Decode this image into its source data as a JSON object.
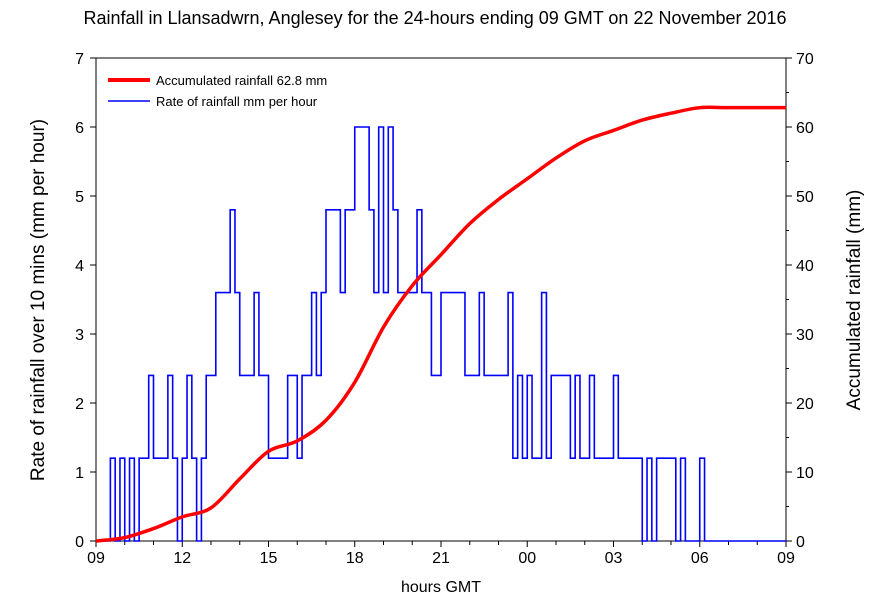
{
  "chart_data": {
    "type": "line",
    "title": "Rainfall in Llansadwrn, Anglesey for the 24-hours ending 09 GMT on 22 November 2016",
    "xlabel": "hours GMT",
    "ylabel_left": "Rate of rainfall over 10 mins (mm per hour)",
    "ylabel_right": "Accumulated rainfall (mm)",
    "x_tick_labels": [
      "09",
      "12",
      "15",
      "18",
      "21",
      "00",
      "03",
      "06",
      "09"
    ],
    "x_range_hours_from_start": [
      0,
      24
    ],
    "ylim_left": [
      0,
      7
    ],
    "ylim_right": [
      0,
      70
    ],
    "y_ticks_left": [
      "0",
      "1",
      "2",
      "3",
      "4",
      "5",
      "6",
      "7"
    ],
    "y_ticks_right": [
      "0",
      "10",
      "20",
      "30",
      "40",
      "50",
      "60",
      "70"
    ],
    "grid": false,
    "legend_position": "top-left",
    "series": [
      {
        "name": "Accumulated rainfall 62.8 mm",
        "axis": "right",
        "color": "#ff0000",
        "style": "line",
        "x_hours": [
          0,
          1,
          2,
          3,
          4,
          5,
          6,
          7,
          8,
          9,
          10,
          11,
          12,
          13,
          14,
          15,
          16,
          17,
          18,
          19,
          20,
          21,
          22,
          23,
          24
        ],
        "values": [
          0,
          0.5,
          1.8,
          3.5,
          4.8,
          9,
          13,
          14.5,
          17.5,
          23,
          31,
          37,
          41.5,
          46,
          49.5,
          52.5,
          55.5,
          58,
          59.5,
          61,
          62,
          62.8,
          62.8,
          62.8,
          62.8
        ]
      },
      {
        "name": "Rate of rainfall mm per hour",
        "axis": "left",
        "color": "#0000ff",
        "style": "step",
        "interval_minutes": 10,
        "values": [
          0,
          0,
          0,
          1.2,
          0,
          1.2,
          0,
          1.2,
          0,
          1.2,
          1.2,
          2.4,
          1.2,
          1.2,
          1.2,
          2.4,
          1.2,
          0,
          1.2,
          2.4,
          1.2,
          0,
          1.2,
          2.4,
          2.4,
          3.6,
          3.6,
          3.6,
          4.8,
          3.6,
          2.4,
          2.4,
          2.4,
          3.6,
          2.4,
          2.4,
          1.2,
          1.2,
          1.2,
          1.2,
          2.4,
          2.4,
          1.2,
          2.4,
          2.4,
          3.6,
          2.4,
          3.6,
          4.8,
          4.8,
          4.8,
          3.6,
          4.8,
          4.8,
          6.0,
          6.0,
          6.0,
          4.8,
          3.6,
          6.0,
          3.6,
          6.0,
          4.8,
          3.6,
          3.6,
          3.6,
          3.6,
          4.8,
          3.6,
          3.6,
          2.4,
          2.4,
          3.6,
          3.6,
          3.6,
          3.6,
          3.6,
          2.4,
          2.4,
          2.4,
          3.6,
          2.4,
          2.4,
          2.4,
          2.4,
          2.4,
          3.6,
          1.2,
          2.4,
          1.2,
          2.4,
          1.2,
          1.2,
          3.6,
          1.2,
          2.4,
          2.4,
          2.4,
          2.4,
          1.2,
          2.4,
          1.2,
          1.2,
          2.4,
          1.2,
          1.2,
          1.2,
          1.2,
          2.4,
          1.2,
          1.2,
          1.2,
          1.2,
          1.2,
          0,
          1.2,
          0,
          1.2,
          1.2,
          1.2,
          1.2,
          0,
          1.2,
          0,
          0,
          0,
          1.2,
          0,
          0,
          0,
          0,
          0,
          0,
          0,
          0,
          0,
          0,
          0,
          0,
          0,
          0,
          0,
          0,
          0
        ]
      }
    ]
  }
}
